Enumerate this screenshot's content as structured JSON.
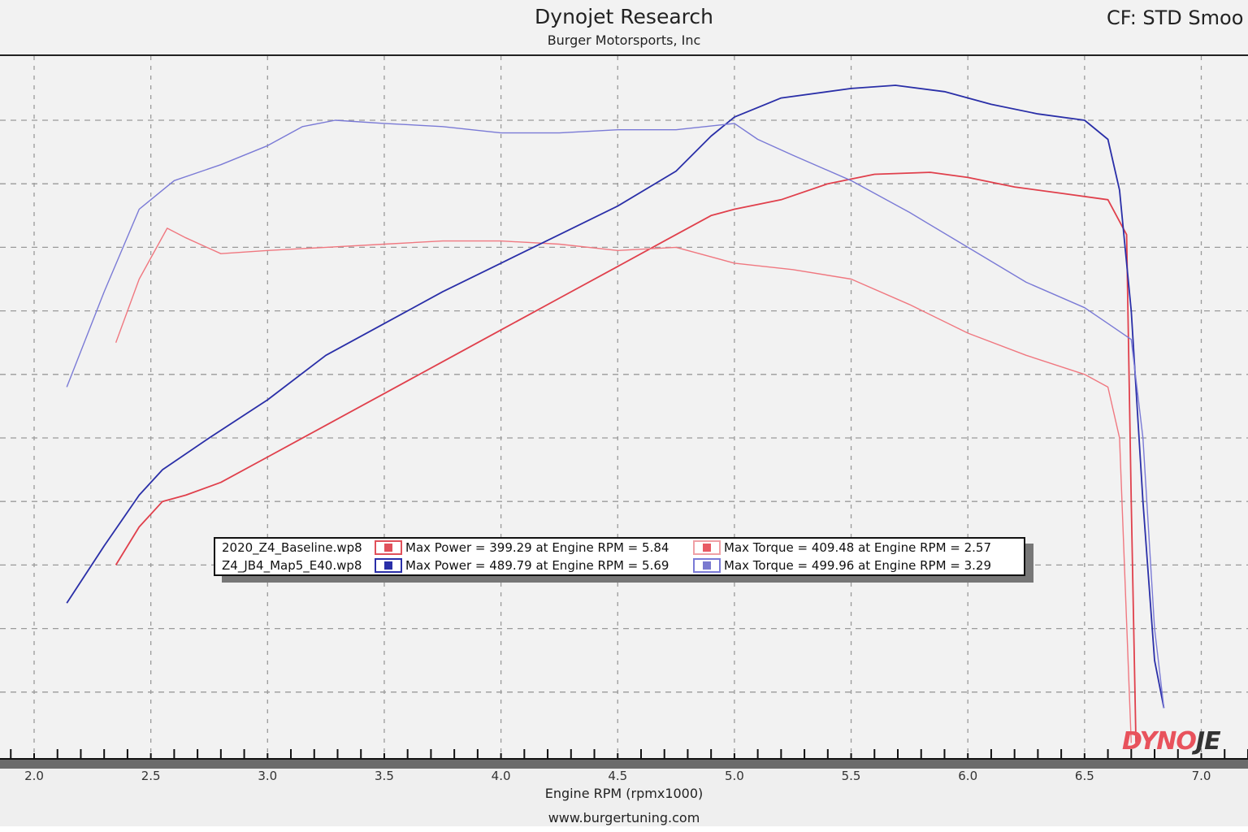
{
  "header": {
    "title": "Dynojet Research",
    "subtitle": "Burger Motorsports, Inc",
    "correction_factor": "CF: STD Smoo"
  },
  "legend": {
    "rows": [
      {
        "file": "2020_Z4_Baseline.wp8",
        "power_color": "#e0505a",
        "power_text": "Max Power = 399.29 at Engine RPM = 5.84",
        "torque_color": "#e0707a",
        "torque_text": "Max Torque = 409.48 at Engine RPM = 2.57"
      },
      {
        "file": "Z4_JB4_Map5_E40.wp8",
        "power_color": "#2a2fa8",
        "power_text": "Max Power = 489.79 at Engine RPM = 5.69",
        "torque_color": "#7a7ad0",
        "torque_text": "Max Torque = 499.96 at Engine RPM = 3.29"
      }
    ]
  },
  "axis": {
    "xlabel": "Engine RPM (rpmx1000)",
    "ticks": [
      "2.0",
      "2.5",
      "3.0",
      "3.5",
      "4.0",
      "4.5",
      "5.0",
      "5.5",
      "6.0",
      "6.5",
      "7.0"
    ]
  },
  "footer": {
    "url": "www.burgertuning.com"
  },
  "logo": {
    "part1": "DYNO",
    "part2": "JE"
  },
  "colors": {
    "baseline_power": "#e0404c",
    "baseline_torque": "#f07880",
    "tuned_power": "#2a2fa8",
    "tuned_torque": "#7a7ad6",
    "grid": "#9a9a9a"
  },
  "chart_data": {
    "type": "line",
    "title": "Dynojet Research",
    "subtitle": "Burger Motorsports, Inc",
    "xlabel": "Engine RPM (rpmx1000)",
    "ylabel": "",
    "xlim": [
      1.95,
      7.2
    ],
    "x_ticks": [
      2.0,
      2.5,
      3.0,
      3.5,
      4.0,
      4.5,
      5.0,
      5.5,
      6.0,
      6.5,
      7.0
    ],
    "y_ticks_labeled": false,
    "grid": true,
    "legend_position": "inside-lower-center",
    "y_units_note": "y values expressed as grid units from bottom axis (each horizontal gridline = 1 unit; y-axis values unlabeled in image)",
    "series": [
      {
        "name": "2020_Z4_Baseline.wp8 Power",
        "max_label": "Max Power = 399.29 at Engine RPM = 5.84",
        "x": [
          2.35,
          2.45,
          2.55,
          2.65,
          2.8,
          3.0,
          3.25,
          3.5,
          3.75,
          4.0,
          4.25,
          4.5,
          4.7,
          4.9,
          5.0,
          5.2,
          5.4,
          5.6,
          5.84,
          6.0,
          6.2,
          6.4,
          6.6,
          6.68,
          6.7,
          6.72
        ],
        "y": [
          3.0,
          3.6,
          4.0,
          4.1,
          4.3,
          4.7,
          5.2,
          5.7,
          6.2,
          6.7,
          7.2,
          7.7,
          8.1,
          8.5,
          8.6,
          8.75,
          9.0,
          9.15,
          9.18,
          9.1,
          8.95,
          8.85,
          8.75,
          8.2,
          4.0,
          0.2
        ]
      },
      {
        "name": "2020_Z4_Baseline.wp8 Torque",
        "max_label": "Max Torque = 409.48 at Engine RPM = 2.57",
        "x": [
          2.35,
          2.45,
          2.57,
          2.65,
          2.8,
          3.0,
          3.25,
          3.5,
          3.75,
          4.0,
          4.25,
          4.5,
          4.75,
          5.0,
          5.25,
          5.5,
          5.75,
          6.0,
          6.25,
          6.5,
          6.6,
          6.65,
          6.7
        ],
        "y": [
          6.5,
          7.5,
          8.3,
          8.15,
          7.9,
          7.95,
          8.0,
          8.05,
          8.1,
          8.1,
          8.05,
          7.95,
          8.0,
          7.75,
          7.65,
          7.5,
          7.1,
          6.65,
          6.3,
          6.0,
          5.8,
          5.0,
          0.2
        ]
      },
      {
        "name": "Z4_JB4_Map5_E40.wp8 Power",
        "max_label": "Max Power = 489.79 at Engine RPM = 5.69",
        "x": [
          2.14,
          2.3,
          2.45,
          2.55,
          2.75,
          3.0,
          3.25,
          3.5,
          3.75,
          4.0,
          4.25,
          4.5,
          4.75,
          4.9,
          5.0,
          5.2,
          5.5,
          5.69,
          5.9,
          6.1,
          6.3,
          6.5,
          6.6,
          6.65,
          6.7,
          6.75,
          6.8,
          6.84
        ],
        "y": [
          2.4,
          3.3,
          4.1,
          4.5,
          5.0,
          5.6,
          6.3,
          6.8,
          7.3,
          7.75,
          8.2,
          8.65,
          9.2,
          9.75,
          10.05,
          10.35,
          10.5,
          10.55,
          10.45,
          10.25,
          10.1,
          10.0,
          9.7,
          8.9,
          7.0,
          4.0,
          1.5,
          0.75
        ]
      },
      {
        "name": "Z4_JB4_Map5_E40.wp8 Torque",
        "max_label": "Max Torque = 499.96 at Engine RPM = 3.29",
        "x": [
          2.14,
          2.3,
          2.45,
          2.6,
          2.8,
          3.0,
          3.15,
          3.29,
          3.5,
          3.75,
          4.0,
          4.25,
          4.5,
          4.75,
          5.0,
          5.1,
          5.25,
          5.5,
          5.75,
          6.0,
          6.25,
          6.5,
          6.6,
          6.7,
          6.75,
          6.8,
          6.84
        ],
        "y": [
          5.8,
          7.3,
          8.6,
          9.05,
          9.3,
          9.6,
          9.9,
          10.0,
          9.95,
          9.9,
          9.8,
          9.8,
          9.85,
          9.85,
          9.95,
          9.7,
          9.45,
          9.05,
          8.55,
          8.0,
          7.45,
          7.05,
          6.8,
          6.55,
          5.0,
          2.0,
          0.75
        ]
      }
    ]
  }
}
